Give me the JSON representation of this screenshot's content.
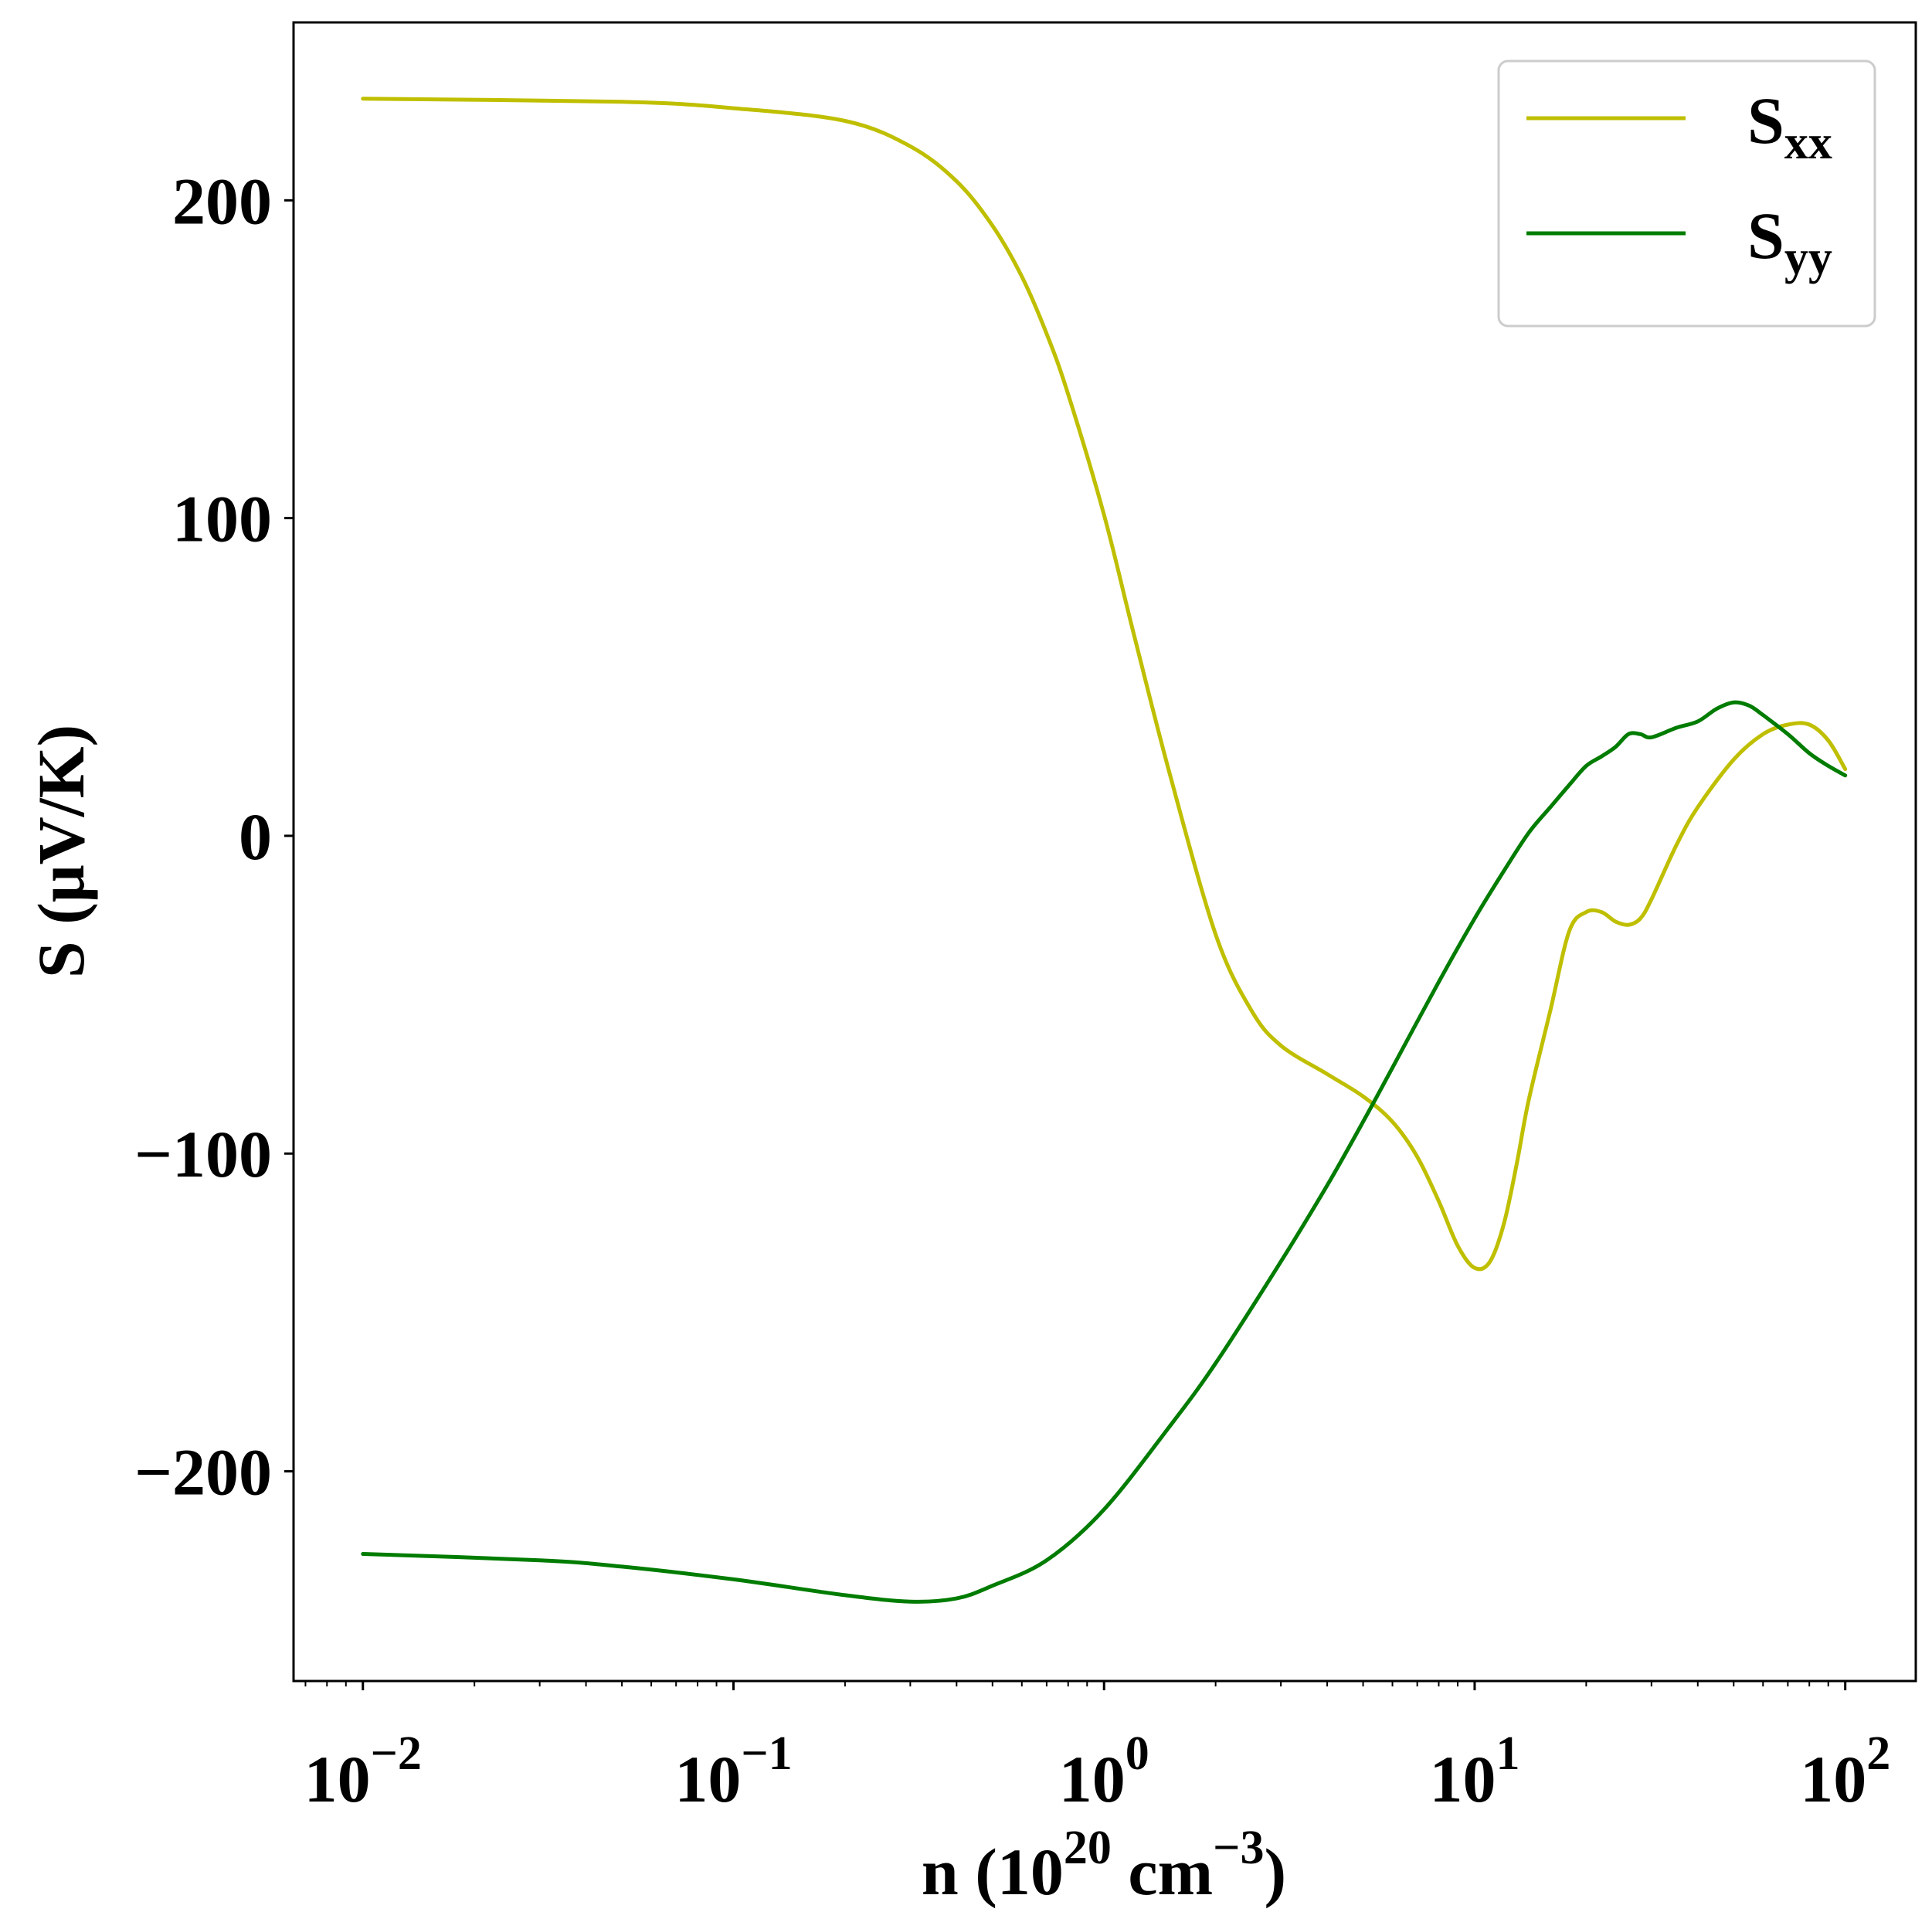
{
  "chart_data": {
    "type": "line",
    "xscale": "log",
    "xlim": [
      0.0065,
      155
    ],
    "ylim": [
      -266,
      256
    ],
    "xlabel": {
      "main": "n (10",
      "sup1": "20",
      "mid": " cm",
      "sup2": "−3",
      "end": ")"
    },
    "ylabel": "S (μV/K)",
    "grid": false,
    "legend_position": "top-right",
    "xticks": [
      {
        "value": 0.01,
        "base": "10",
        "exp": "−2"
      },
      {
        "value": 0.1,
        "base": "10",
        "exp": "−1"
      },
      {
        "value": 1,
        "base": "10",
        "exp": "0"
      },
      {
        "value": 10,
        "base": "10",
        "exp": "1"
      },
      {
        "value": 100,
        "base": "10",
        "exp": "2"
      }
    ],
    "yticks": [
      {
        "value": 200,
        "label": "200"
      },
      {
        "value": 100,
        "label": "100"
      },
      {
        "value": 0,
        "label": "0"
      },
      {
        "value": -100,
        "label": "−100"
      },
      {
        "value": -200,
        "label": "−200"
      }
    ],
    "series": [
      {
        "name": "S",
        "sub": "xx",
        "color": "#bfbf00",
        "x": [
          0.01,
          0.05,
          0.1,
          0.2,
          0.3,
          0.4,
          0.5,
          0.6,
          0.7,
          0.8,
          1.0,
          1.2,
          1.5,
          2.0,
          2.5,
          3.0,
          4.0,
          5.0,
          6.0,
          7.0,
          8.0,
          9.0,
          10.0,
          11.0,
          12.0,
          13.0,
          14.0,
          16.0,
          18.0,
          20.0,
          22.0,
          24.0,
          26.0,
          28.0,
          30.0,
          35.0,
          40.0,
          50.0,
          60.0,
          70.0,
          80.0,
          90.0,
          100.0
        ],
        "y": [
          232,
          231,
          229,
          225,
          217,
          206,
          192,
          176,
          158,
          139,
          101,
          64,
          20,
          -31,
          -55,
          -66,
          -75,
          -82,
          -90,
          -101,
          -115,
          -129,
          -136,
          -134,
          -122,
          -103,
          -83,
          -55,
          -30,
          -24,
          -24,
          -27,
          -28,
          -26,
          -20,
          -3,
          9,
          24,
          32,
          35,
          35,
          30,
          21
        ]
      },
      {
        "name": "S",
        "sub": "yy",
        "color": "#007c00",
        "x": [
          0.01,
          0.03,
          0.05,
          0.1,
          0.2,
          0.3,
          0.4,
          0.5,
          0.7,
          1.0,
          1.5,
          2.0,
          3.0,
          4.0,
          5.0,
          6.0,
          8.0,
          10.0,
          12.0,
          14.0,
          16.0,
          18.0,
          20.0,
          22.0,
          24.0,
          26.0,
          28.0,
          30.0,
          35.0,
          40.0,
          45.0,
          50.0,
          55.0,
          60.0,
          70.0,
          80.0,
          90.0,
          100.0
        ],
        "y": [
          -226,
          -228,
          -230,
          -234,
          -239,
          -241,
          -240,
          -236,
          -228,
          -212,
          -186,
          -166,
          -134,
          -110,
          -90,
          -73,
          -46,
          -26,
          -11,
          1,
          9,
          16,
          22,
          25,
          28,
          32,
          32,
          31,
          34,
          36,
          40,
          42,
          41,
          38,
          32,
          26,
          22,
          19
        ]
      }
    ]
  }
}
